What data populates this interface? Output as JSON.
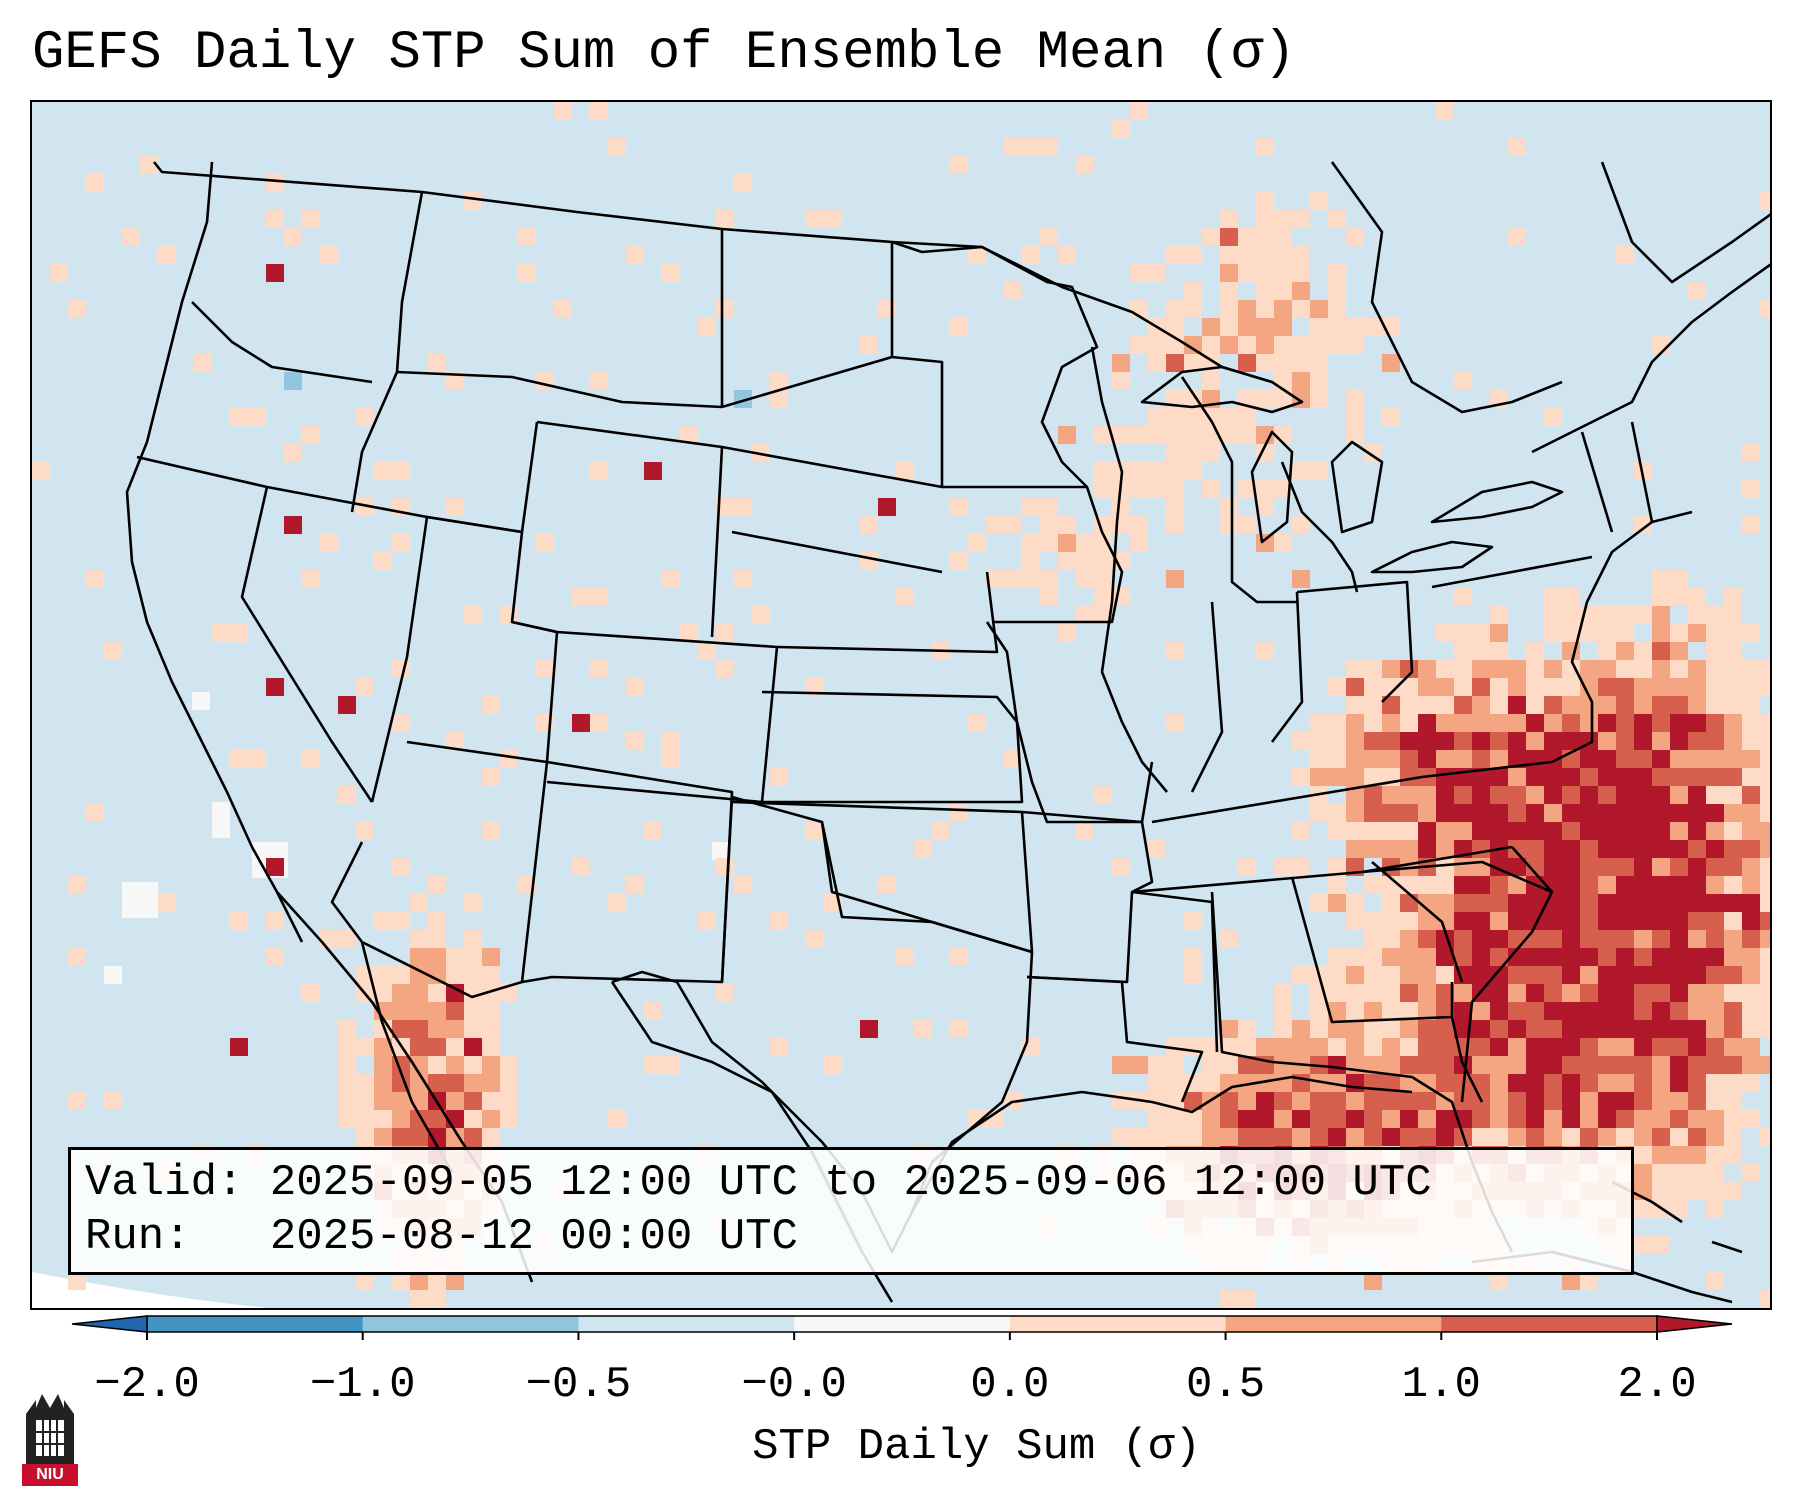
{
  "title": "GEFS Daily STP Sum of Ensemble Mean (σ)",
  "info": {
    "valid_line": "Valid: 2025-09-05 12:00 UTC to 2025-09-06 12:00 UTC",
    "run_line": "Run:   2025-08-12 00:00 UTC"
  },
  "colorbar": {
    "label": "STP Daily Sum (σ)",
    "ticks": [
      "−2.0",
      "−1.0",
      "−0.5",
      "−0.0",
      "0.0",
      "0.5",
      "1.0",
      "2.0"
    ],
    "bin_colors": [
      "#4393c3",
      "#92c5de",
      "#d1e5f0",
      "#f7f7f7",
      "#fddbc7",
      "#f4a582",
      "#d6604d"
    ],
    "under_color": "#2166ac",
    "over_color": "#b2182b"
  },
  "logo": {
    "text": "NIU"
  },
  "map_colors": {
    "ocean": "#d1e5f0",
    "neutral": "#f7f7f7",
    "low": "#fddbc7",
    "mid": "#f4a582",
    "high": "#d6604d",
    "extreme": "#b2182b",
    "neg": "#92c5de"
  }
}
